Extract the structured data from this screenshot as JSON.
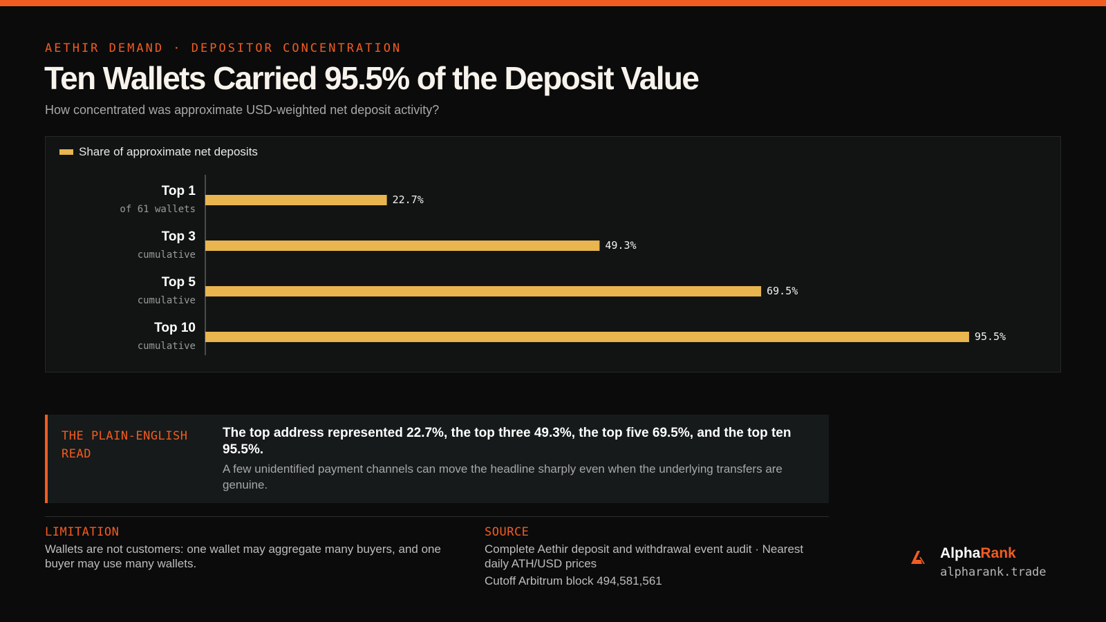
{
  "colors": {
    "accent": "#f25c22",
    "bar": "#e8b54e",
    "background": "#0b0b0b",
    "panel": "#121414"
  },
  "header": {
    "kicker": "AETHIR DEMAND · DEPOSITOR CONCENTRATION",
    "title": "Ten Wallets Carried 95.5% of the Deposit Value",
    "subtitle": "How concentrated was approximate USD-weighted net deposit activity?"
  },
  "chart_data": {
    "type": "bar",
    "orientation": "horizontal",
    "legend": "Share of approximate net deposits",
    "legend_position": "top-left",
    "categories": [
      "Top 1",
      "Top 3",
      "Top 5",
      "Top 10"
    ],
    "category_notes": [
      "of 61 wallets",
      "cumulative",
      "cumulative",
      "cumulative"
    ],
    "values": [
      22.7,
      49.3,
      69.5,
      95.5
    ],
    "value_labels": [
      "22.7%",
      "49.3%",
      "69.5%",
      "95.5%"
    ],
    "xlim": [
      0,
      100
    ],
    "grid": false
  },
  "read": {
    "label": "THE PLAIN-ENGLISH READ",
    "headline": "The top address represented 22.7%, the top three 49.3%, the top five 69.5%, and the top ten 95.5%.",
    "body": "A few unidentified payment channels can move the headline sharply even when the underlying transfers are genuine."
  },
  "limitation": {
    "label": "LIMITATION",
    "text": "Wallets are not customers: one wallet may aggregate many buyers, and one buyer may use many wallets."
  },
  "source": {
    "label": "SOURCE",
    "text": "Complete Aethir deposit and withdrawal event audit · Nearest daily ATH/USD prices",
    "cutoff": "Cutoff Arbitrum block 494,581,561"
  },
  "brand": {
    "icon": "alpharank-logo-icon",
    "name_part1": "Alpha",
    "name_part2": "Rank",
    "url": "alpharank.trade"
  }
}
